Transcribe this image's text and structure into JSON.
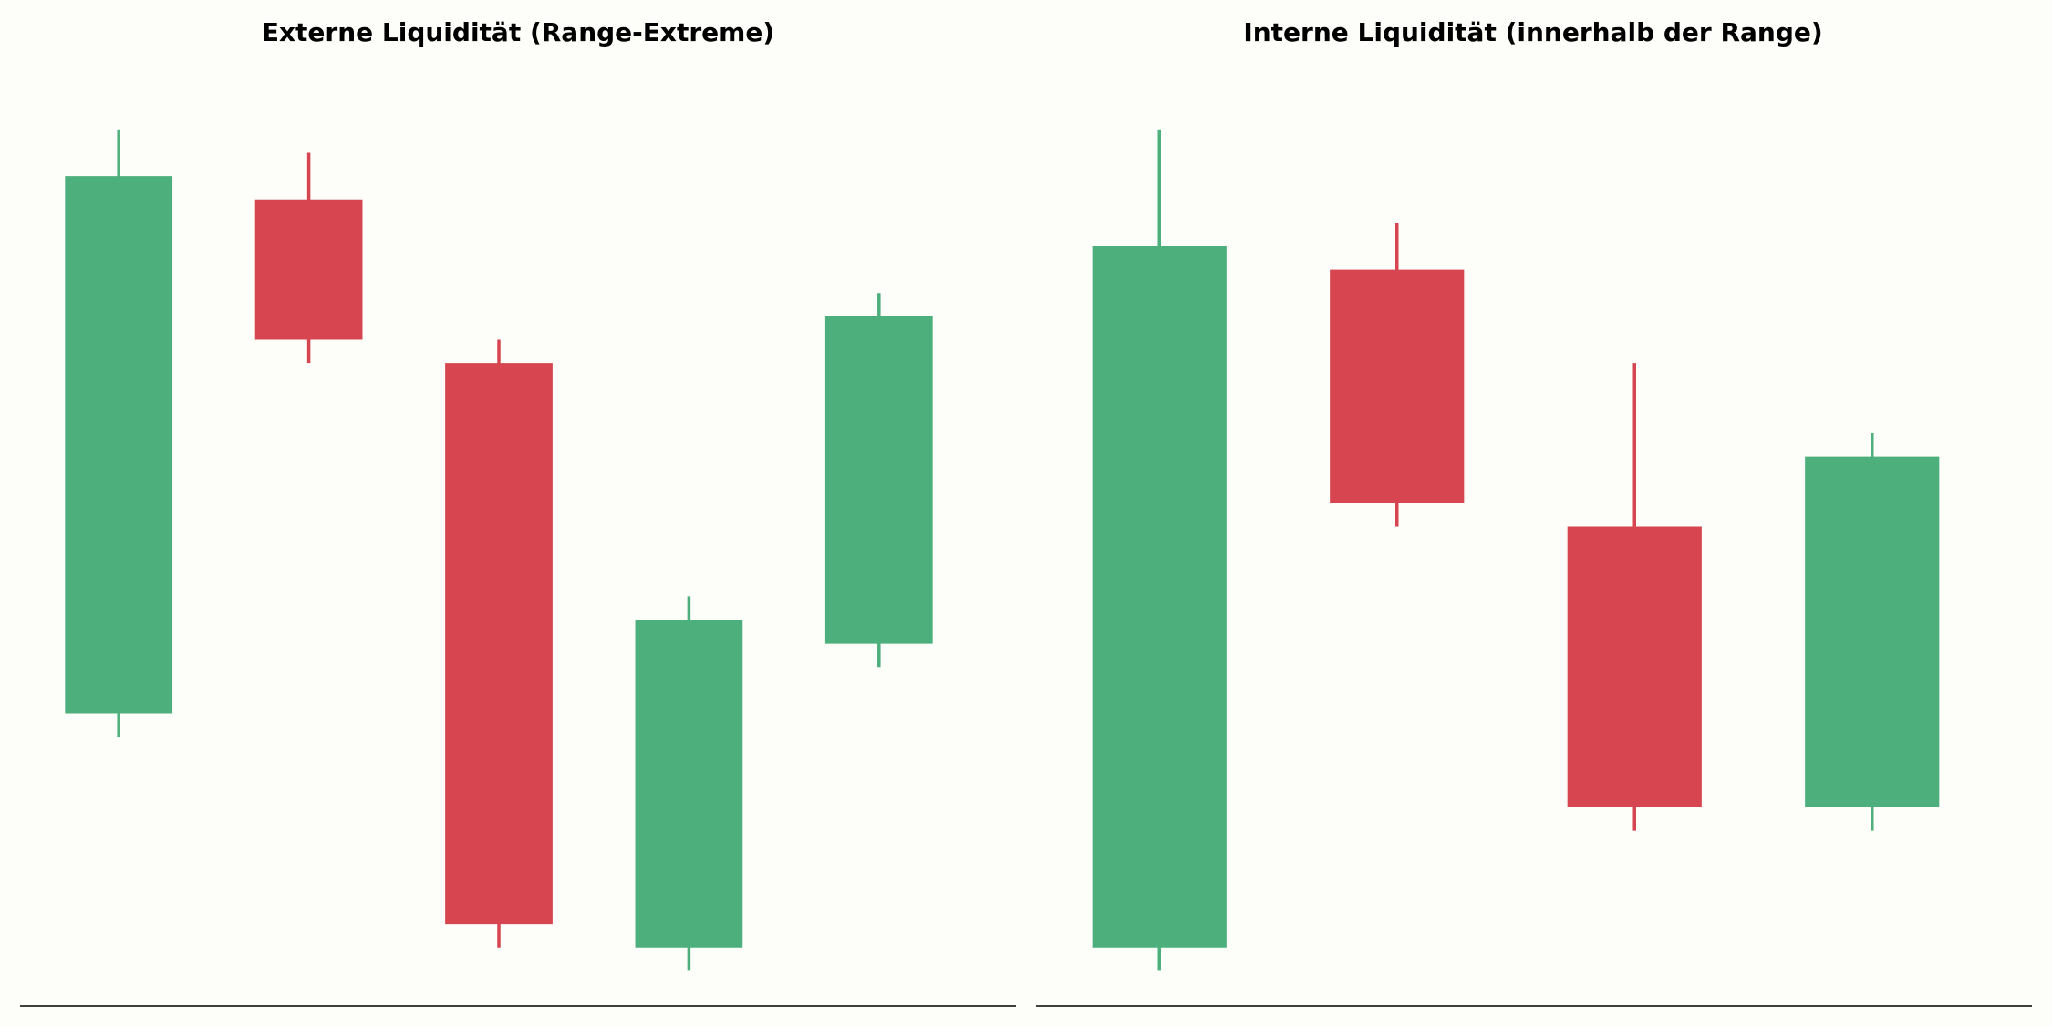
{
  "colors": {
    "background": "#fdfdf9",
    "bullish": "#4daf7c",
    "bearish": "#d64550",
    "axis": "#000000"
  },
  "chart_data": [
    {
      "type": "candlestick",
      "title": "Externe Liquidität (Range-Extreme)",
      "grid": false,
      "ylim": [
        0,
        40
      ],
      "candles": [
        {
          "open": 12,
          "close": 35,
          "high": 37,
          "low": 11
        },
        {
          "open": 34,
          "close": 28,
          "high": 36,
          "low": 27
        },
        {
          "open": 27,
          "close": 3,
          "high": 28,
          "low": 2
        },
        {
          "open": 2,
          "close": 16,
          "high": 17,
          "low": 1
        },
        {
          "open": 15,
          "close": 29,
          "high": 30,
          "low": 14
        }
      ]
    },
    {
      "type": "candlestick",
      "title": "Interne Liquidität (innerhalb der Range)",
      "grid": false,
      "ylim": [
        0,
        40
      ],
      "candles": [
        {
          "open": 2,
          "close": 32,
          "high": 37,
          "low": 1
        },
        {
          "open": 31,
          "close": 21,
          "high": 33,
          "low": 20
        },
        {
          "open": 20,
          "close": 8,
          "high": 27,
          "low": 7
        },
        {
          "open": 8,
          "close": 23,
          "high": 24,
          "low": 7
        }
      ]
    }
  ]
}
